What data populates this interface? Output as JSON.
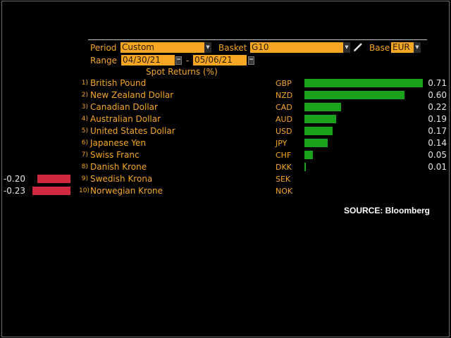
{
  "controls": {
    "period_label": "Period",
    "period_value": "Custom",
    "basket_label": "Basket",
    "basket_value": "G10",
    "base_label": "Base",
    "base_value": "EUR",
    "range_label": "Range",
    "range_start": "04/30/21",
    "range_separator": "-",
    "range_end": "05/06/21"
  },
  "colors": {
    "accent": "#f5a623",
    "positive": "#1aa31a",
    "negative": "#d0283c",
    "background": "#000000"
  },
  "chart_data": {
    "type": "bar",
    "title": "Spot Returns (%)",
    "rows": [
      {
        "rank": "1)",
        "name": "British Pound",
        "code": "GBP",
        "value": 0.71,
        "label": "0.71"
      },
      {
        "rank": "2)",
        "name": "New Zealand Dollar",
        "code": "NZD",
        "value": 0.6,
        "label": "0.60"
      },
      {
        "rank": "3)",
        "name": "Canadian Dollar",
        "code": "CAD",
        "value": 0.22,
        "label": "0.22"
      },
      {
        "rank": "4)",
        "name": "Australian Dollar",
        "code": "AUD",
        "value": 0.19,
        "label": "0.19"
      },
      {
        "rank": "5)",
        "name": "United States Dollar",
        "code": "USD",
        "value": 0.17,
        "label": "0.17"
      },
      {
        "rank": "6)",
        "name": "Japanese Yen",
        "code": "JPY",
        "value": 0.14,
        "label": "0.14"
      },
      {
        "rank": "7)",
        "name": "Swiss Franc",
        "code": "CHF",
        "value": 0.05,
        "label": "0.05"
      },
      {
        "rank": "8)",
        "name": "Danish Krone",
        "code": "DKK",
        "value": 0.01,
        "label": "0.01"
      },
      {
        "rank": "9)",
        "name": "Swedish Krona",
        "code": "SEK",
        "value": -0.2,
        "label": "-0.20"
      },
      {
        "rank": "10)",
        "name": "Norwegian Krone",
        "code": "NOK",
        "value": -0.23,
        "label": "-0.23"
      }
    ]
  },
  "footer": {
    "source": "SOURCE: Bloomberg"
  }
}
